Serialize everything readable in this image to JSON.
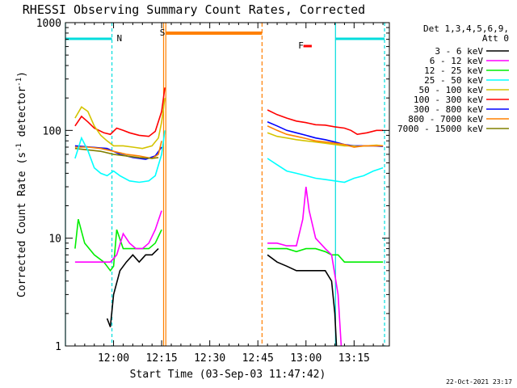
{
  "chart_data": {
    "type": "line",
    "title": "RHESSI Observing Summary Count Rates, Corrected",
    "xlabel": "Start Time (03-Sep-03 11:47:42)",
    "ylabel": "Corrected Count Rate (s⁻¹ detector⁻¹)",
    "ylabel_main": "Corrected Count Rate (s",
    "ylabel_sup1": "-1",
    "ylabel_mid": " detector",
    "ylabel_sup2": "-1",
    "ylabel_end": ")",
    "y_scale": "log",
    "xlim_min": [
      -3,
      98
    ],
    "ylim": [
      1,
      1000
    ],
    "x_ticks": [
      {
        "min": 12,
        "label": "12:00"
      },
      {
        "min": 27,
        "label": "12:15"
      },
      {
        "min": 42,
        "label": "12:30"
      },
      {
        "min": 57,
        "label": "12:45"
      },
      {
        "min": 72,
        "label": "13:00"
      },
      {
        "min": 87,
        "label": "13:15"
      }
    ],
    "y_ticks": [
      {
        "value": 1,
        "label": "1"
      },
      {
        "value": 10,
        "label": "10"
      },
      {
        "value": 100,
        "label": "100"
      },
      {
        "value": 1000,
        "label": "1000"
      }
    ],
    "legend": {
      "header1": "Det 1,3,4,5,6,9,",
      "header2": "Att 0",
      "placement": "right",
      "entries": [
        {
          "name": "3 - 6 keV",
          "color": "#000000"
        },
        {
          "name": "6 - 12 keV",
          "color": "#ff00ff"
        },
        {
          "name": "12 - 25 keV",
          "color": "#00ee00"
        },
        {
          "name": "25 - 50 keV",
          "color": "#00ffff"
        },
        {
          "name": "50 - 100 keV",
          "color": "#d4c400"
        },
        {
          "name": "100 - 300 keV",
          "color": "#ff0000"
        },
        {
          "name": "300 - 800 keV",
          "color": "#0000ff"
        },
        {
          "name": "800 - 7000 keV",
          "color": "#ff8000"
        },
        {
          "name": "7000 - 15000 keV",
          "color": "#808000"
        }
      ]
    },
    "annotations": [
      {
        "label": "N",
        "color": "#00dddd"
      },
      {
        "label": "S",
        "color": "#ff8000"
      },
      {
        "label": "F",
        "color": "#ff0000"
      }
    ],
    "series": [
      {
        "key": "s100_300",
        "color": "#ff0000",
        "points": [
          [
            0,
            110
          ],
          [
            2,
            135
          ],
          [
            4,
            120
          ],
          [
            6,
            105
          ],
          [
            9,
            95
          ],
          [
            11,
            92
          ],
          [
            13,
            105
          ],
          [
            15,
            100
          ],
          [
            17,
            95
          ],
          [
            20,
            90
          ],
          [
            23,
            88
          ],
          [
            25,
            98
          ],
          [
            27,
            150
          ],
          [
            28,
            250
          ],
          [
            60,
            155
          ],
          [
            63,
            140
          ],
          [
            66,
            130
          ],
          [
            69,
            122
          ],
          [
            72,
            118
          ],
          [
            75,
            113
          ],
          [
            78,
            112
          ],
          [
            81,
            108
          ],
          [
            84,
            105
          ],
          [
            86,
            100
          ],
          [
            88,
            92
          ],
          [
            91,
            95
          ],
          [
            94,
            100
          ],
          [
            96,
            100
          ]
        ]
      },
      {
        "key": "s300_800",
        "color": "#0000ff",
        "points": [
          [
            0,
            72
          ],
          [
            5,
            70
          ],
          [
            10,
            68
          ],
          [
            14,
            60
          ],
          [
            18,
            56
          ],
          [
            22,
            54
          ],
          [
            25,
            58
          ],
          [
            27,
            70
          ],
          [
            60,
            120
          ],
          [
            63,
            110
          ],
          [
            66,
            100
          ],
          [
            69,
            95
          ],
          [
            72,
            90
          ],
          [
            75,
            85
          ],
          [
            78,
            82
          ],
          [
            81,
            78
          ],
          [
            84,
            74
          ],
          [
            87,
            72
          ],
          [
            90,
            72
          ],
          [
            93,
            72
          ],
          [
            96,
            71
          ]
        ]
      },
      {
        "key": "s50_100",
        "color": "#d4c400",
        "points": [
          [
            0,
            130
          ],
          [
            2,
            165
          ],
          [
            4,
            150
          ],
          [
            6,
            110
          ],
          [
            8,
            90
          ],
          [
            10,
            80
          ],
          [
            12,
            72
          ],
          [
            15,
            72
          ],
          [
            18,
            70
          ],
          [
            21,
            68
          ],
          [
            24,
            72
          ],
          [
            26,
            85
          ],
          [
            27,
            120
          ],
          [
            28,
            200
          ],
          [
            60,
            95
          ],
          [
            63,
            88
          ],
          [
            66,
            85
          ],
          [
            69,
            82
          ],
          [
            72,
            80
          ],
          [
            75,
            78
          ],
          [
            78,
            76
          ],
          [
            81,
            74
          ],
          [
            84,
            72
          ],
          [
            86,
            72
          ],
          [
            88,
            71
          ],
          [
            91,
            72
          ],
          [
            94,
            73
          ],
          [
            96,
            72
          ]
        ]
      },
      {
        "key": "s800_7000",
        "color": "#ff8000",
        "points": [
          [
            0,
            70
          ],
          [
            4,
            70
          ],
          [
            8,
            68
          ],
          [
            12,
            64
          ],
          [
            16,
            60
          ],
          [
            20,
            58
          ],
          [
            24,
            55
          ],
          [
            26,
            60
          ],
          [
            27,
            80
          ],
          [
            60,
            110
          ],
          [
            63,
            100
          ],
          [
            66,
            92
          ],
          [
            69,
            88
          ],
          [
            72,
            84
          ],
          [
            75,
            80
          ],
          [
            78,
            78
          ],
          [
            81,
            76
          ],
          [
            84,
            74
          ],
          [
            87,
            70
          ],
          [
            90,
            72
          ],
          [
            93,
            72
          ],
          [
            96,
            72
          ]
        ]
      },
      {
        "key": "s7000_15000",
        "color": "#808000",
        "points": [
          [
            0,
            68
          ],
          [
            4,
            66
          ],
          [
            8,
            64
          ],
          [
            12,
            60
          ],
          [
            16,
            58
          ],
          [
            20,
            56
          ],
          [
            24,
            55
          ],
          [
            26,
            56
          ]
        ]
      },
      {
        "key": "s25_50",
        "color": "#00ffff",
        "points": [
          [
            0,
            55
          ],
          [
            2,
            85
          ],
          [
            4,
            65
          ],
          [
            6,
            45
          ],
          [
            8,
            40
          ],
          [
            10,
            38
          ],
          [
            12,
            42
          ],
          [
            14,
            38
          ],
          [
            17,
            34
          ],
          [
            20,
            33
          ],
          [
            23,
            34
          ],
          [
            25,
            38
          ],
          [
            27,
            60
          ],
          [
            28,
            100
          ],
          [
            60,
            55
          ],
          [
            63,
            48
          ],
          [
            66,
            42
          ],
          [
            69,
            40
          ],
          [
            72,
            38
          ],
          [
            75,
            36
          ],
          [
            78,
            35
          ],
          [
            81,
            34
          ],
          [
            84,
            33
          ],
          [
            87,
            36
          ],
          [
            90,
            38
          ],
          [
            93,
            42
          ],
          [
            96,
            45
          ]
        ]
      },
      {
        "key": "s12_25",
        "color": "#00ee00",
        "points": [
          [
            0,
            8
          ],
          [
            1,
            15
          ],
          [
            3,
            9
          ],
          [
            6,
            7
          ],
          [
            9,
            6
          ],
          [
            11,
            5
          ],
          [
            12,
            5.5
          ],
          [
            13,
            12
          ],
          [
            15,
            8
          ],
          [
            17,
            8
          ],
          [
            20,
            8
          ],
          [
            23,
            8
          ],
          [
            25,
            9
          ],
          [
            27,
            12
          ],
          [
            60,
            8
          ],
          [
            63,
            8
          ],
          [
            66,
            8
          ],
          [
            69,
            7.5
          ],
          [
            72,
            8
          ],
          [
            75,
            8
          ],
          [
            78,
            7.5
          ],
          [
            80,
            7
          ],
          [
            82,
            7
          ],
          [
            84,
            6
          ],
          [
            87,
            6
          ],
          [
            90,
            6
          ],
          [
            93,
            6
          ],
          [
            96,
            6
          ]
        ]
      },
      {
        "key": "s6_12",
        "color": "#ff00ff",
        "points": [
          [
            0,
            6
          ],
          [
            3,
            6
          ],
          [
            5,
            6
          ],
          [
            8,
            6
          ],
          [
            11,
            6
          ],
          [
            13,
            7
          ],
          [
            15,
            11
          ],
          [
            17,
            9
          ],
          [
            19,
            8
          ],
          [
            21,
            8
          ],
          [
            23,
            9
          ],
          [
            25,
            12
          ],
          [
            27,
            18
          ],
          [
            60,
            9
          ],
          [
            63,
            9
          ],
          [
            66,
            8.5
          ],
          [
            69,
            8.5
          ],
          [
            71,
            15
          ],
          [
            72,
            30
          ],
          [
            73,
            18
          ],
          [
            75,
            10
          ],
          [
            78,
            8
          ],
          [
            80,
            7
          ],
          [
            82,
            3
          ],
          [
            83,
            1
          ]
        ]
      },
      {
        "key": "s3_6",
        "color": "#000000",
        "points": [
          [
            10,
            1.8
          ],
          [
            11,
            1.5
          ],
          [
            12,
            3
          ],
          [
            14,
            5
          ],
          [
            16,
            6
          ],
          [
            18,
            7
          ],
          [
            20,
            6
          ],
          [
            22,
            7
          ],
          [
            24,
            7
          ],
          [
            26,
            8
          ],
          [
            60,
            7
          ],
          [
            63,
            6
          ],
          [
            66,
            5.5
          ],
          [
            69,
            5
          ],
          [
            72,
            5
          ],
          [
            75,
            5
          ],
          [
            78,
            5
          ],
          [
            80,
            4
          ],
          [
            81,
            2
          ],
          [
            81.5,
            1
          ]
        ]
      }
    ]
  }
}
